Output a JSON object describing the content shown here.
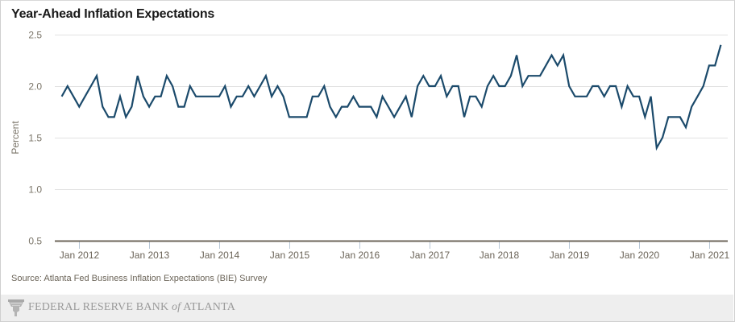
{
  "page": {
    "title": "Year-Ahead Inflation Expectations",
    "source": "Source: Atlanta Fed Business Inflation Expectations (BIE) Survey",
    "footer": {
      "org_main": "FEDERAL RESERVE BANK ",
      "org_of": "of",
      "org_end": " ATLANTA",
      "logo_icon": "federal-reserve-eagle-logo"
    }
  },
  "colors": {
    "line": "#1b4a6b",
    "grid": "#e2e2e2",
    "axis": "#6e665a",
    "tick": "#b9c8d8",
    "footer_bg": "#eeeeee"
  },
  "chart_data": {
    "type": "line",
    "title": "Year-Ahead Inflation Expectations",
    "xlabel": "",
    "ylabel": "Percent",
    "ylim": [
      0.5,
      2.5
    ],
    "yticks": [
      2.5,
      2.0,
      1.5,
      1.0,
      0.5
    ],
    "ytick_labels": [
      "2.5",
      "2.0",
      "1.5",
      "1.0",
      "0.5"
    ],
    "xlim": [
      "2011-08",
      "2021-05"
    ],
    "xticks": [
      "2012-01",
      "2013-01",
      "2014-01",
      "2015-01",
      "2016-01",
      "2017-01",
      "2018-01",
      "2019-01",
      "2020-01",
      "2021-01"
    ],
    "xtick_labels": [
      "Jan 2012",
      "Jan 2013",
      "Jan 2014",
      "Jan 2015",
      "Jan 2016",
      "Jan 2017",
      "Jan 2018",
      "Jan 2019",
      "Jan 2020",
      "Jan 2021"
    ],
    "grid": true,
    "legend": "none",
    "start": "2011-10",
    "frequency": "monthly",
    "series": [
      {
        "name": "Year-Ahead Inflation Expectations",
        "values": [
          1.9,
          2.0,
          1.9,
          1.8,
          1.9,
          2.0,
          2.1,
          1.8,
          1.7,
          1.7,
          1.9,
          1.7,
          1.8,
          2.1,
          1.9,
          1.8,
          1.9,
          1.9,
          2.1,
          2.0,
          1.8,
          1.8,
          2.0,
          1.9,
          1.9,
          1.9,
          1.9,
          1.9,
          2.0,
          1.8,
          1.9,
          1.9,
          2.0,
          1.9,
          2.0,
          2.1,
          1.9,
          2.0,
          1.9,
          1.7,
          1.7,
          1.7,
          1.7,
          1.9,
          1.9,
          2.0,
          1.8,
          1.7,
          1.8,
          1.8,
          1.9,
          1.8,
          1.8,
          1.8,
          1.7,
          1.9,
          1.8,
          1.7,
          1.8,
          1.9,
          1.7,
          2.0,
          2.1,
          2.0,
          2.0,
          2.1,
          1.9,
          2.0,
          2.0,
          1.7,
          1.9,
          1.9,
          1.8,
          2.0,
          2.1,
          2.0,
          2.0,
          2.1,
          2.3,
          2.0,
          2.1,
          2.1,
          2.1,
          2.2,
          2.3,
          2.2,
          2.3,
          2.0,
          1.9,
          1.9,
          1.9,
          2.0,
          2.0,
          1.9,
          2.0,
          2.0,
          1.8,
          2.0,
          1.9,
          1.9,
          1.7,
          1.9,
          1.4,
          1.5,
          1.7,
          1.7,
          1.7,
          1.6,
          1.8,
          1.9,
          2.0,
          2.2,
          2.2,
          2.4
        ]
      }
    ]
  }
}
